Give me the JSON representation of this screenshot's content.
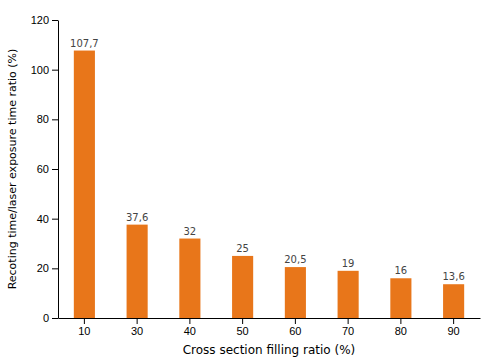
{
  "chart_data": {
    "type": "bar",
    "categories": [
      "10",
      "30",
      "40",
      "50",
      "60",
      "70",
      "80",
      "90"
    ],
    "values": [
      107.7,
      37.6,
      32,
      25,
      20.5,
      19,
      16,
      13.6
    ],
    "value_labels": [
      "107,7",
      "37,6",
      "32",
      "25",
      "20,5",
      "19",
      "16",
      "13,6"
    ],
    "data_labels": true,
    "color": "#E8761A",
    "xlabel": "Cross section filling ratio (%)",
    "ylabel": "Recoting time/laser exposure time ratio (%)",
    "ylim": [
      0,
      120
    ],
    "yticks": [
      0,
      20,
      40,
      60,
      80,
      100,
      120
    ],
    "grid": false
  }
}
